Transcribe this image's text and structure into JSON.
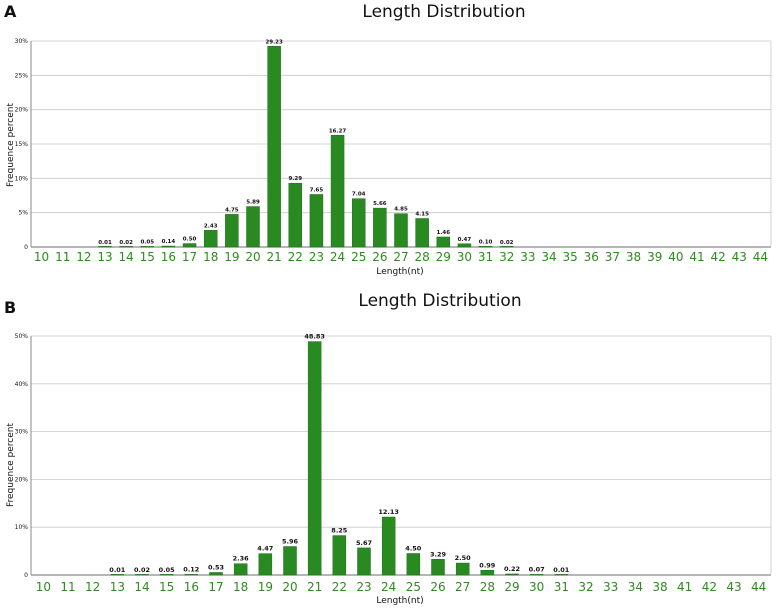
{
  "panels": [
    {
      "letter": "A"
    },
    {
      "letter": "B"
    }
  ],
  "colors": {
    "bar": "#2a8a22",
    "bar_stroke": "#1f6e19",
    "tick_label": "#2e8b1f",
    "grid": "#c9c9c9",
    "axis": "#8a8a8a",
    "text": "#111111"
  },
  "chart_data": [
    {
      "type": "bar",
      "title": "Length Distribution",
      "xlabel": "Length(nt)",
      "ylabel": "Frequence percent",
      "categories": [
        "10",
        "11",
        "12",
        "13",
        "14",
        "15",
        "16",
        "17",
        "18",
        "19",
        "20",
        "21",
        "22",
        "23",
        "24",
        "25",
        "26",
        "27",
        "28",
        "29",
        "30",
        "31",
        "32",
        "33",
        "34",
        "35",
        "36",
        "37",
        "38",
        "39",
        "40",
        "41",
        "42",
        "43",
        "44"
      ],
      "values": [
        0,
        0,
        0,
        0.01,
        0.02,
        0.05,
        0.14,
        0.5,
        2.43,
        4.75,
        5.89,
        29.23,
        9.29,
        7.65,
        16.27,
        7.04,
        5.66,
        4.85,
        4.15,
        1.46,
        0.47,
        0.1,
        0.02,
        0,
        0,
        0,
        0,
        0,
        0,
        0,
        0,
        0,
        0,
        0,
        0
      ],
      "data_labels": [
        "",
        "",
        "",
        "0.01",
        "0.02",
        "0.05",
        "0.14",
        "0.50",
        "2.43",
        "4.75",
        "5.89",
        "29.23",
        "9.29",
        "7.65",
        "16.27",
        "7.04",
        "5.66",
        "4.85",
        "4.15",
        "1.46",
        "0.47",
        "0.10",
        "0.02",
        "",
        "",
        "",
        "",
        "",
        "",
        "",
        "",
        "",
        "",
        "",
        ""
      ],
      "yticks": [
        0,
        5,
        10,
        15,
        20,
        25,
        30
      ],
      "ytick_labels": [
        "0",
        "5%",
        "10%",
        "15%",
        "20%",
        "25%",
        "30%"
      ],
      "ylim": [
        0,
        30
      ],
      "grid": true,
      "legend": "none"
    },
    {
      "type": "bar",
      "title": "Length Distribution",
      "xlabel": "Length(nt)",
      "ylabel": "Frequence percent",
      "categories": [
        "10",
        "11",
        "12",
        "13",
        "14",
        "15",
        "16",
        "17",
        "18",
        "19",
        "20",
        "21",
        "22",
        "23",
        "24",
        "25",
        "26",
        "27",
        "28",
        "29",
        "30",
        "31",
        "32",
        "33",
        "34",
        "38",
        "41",
        "42",
        "43",
        "44"
      ],
      "values": [
        0,
        0,
        0,
        0.01,
        0.02,
        0.05,
        0.12,
        0.53,
        2.36,
        4.47,
        5.96,
        48.83,
        8.25,
        5.67,
        12.13,
        4.5,
        3.29,
        2.5,
        0.99,
        0.22,
        0.07,
        0.01,
        0,
        0,
        0,
        0,
        0,
        0,
        0,
        0
      ],
      "data_labels": [
        "",
        "",
        "",
        "0.01",
        "0.02",
        "0.05",
        "0.12",
        "0.53",
        "2.36",
        "4.47",
        "5.96",
        "48.83",
        "8.25",
        "5.67",
        "12.13",
        "4.50",
        "3.29",
        "2.50",
        "0.99",
        "0.22",
        "0.07",
        "0.01",
        "",
        "",
        "",
        "",
        "",
        "",
        "",
        ""
      ],
      "yticks": [
        0,
        10,
        20,
        30,
        40,
        50
      ],
      "ytick_labels": [
        "0",
        "10%",
        "20%",
        "30%",
        "40%",
        "50%"
      ],
      "ylim": [
        0,
        50
      ],
      "grid": true,
      "legend": "none"
    }
  ]
}
